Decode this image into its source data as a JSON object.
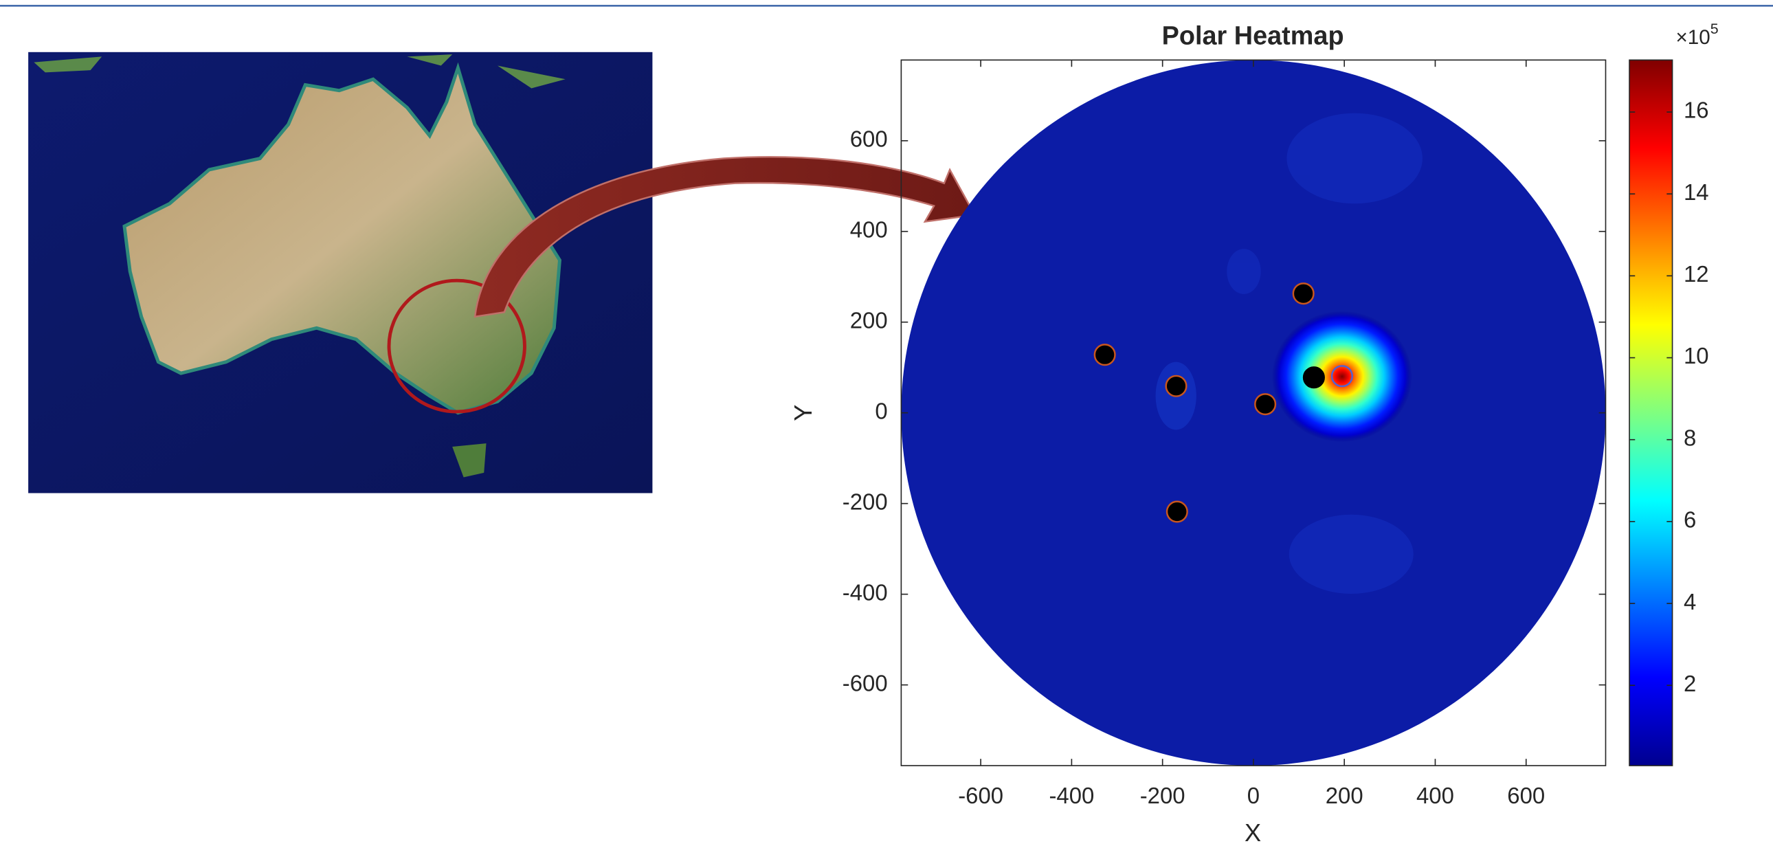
{
  "chart_data": {
    "type": "scatter",
    "title": "Polar Heatmap",
    "xlabel": "X",
    "ylabel": "Y",
    "xlim": [
      -775,
      775
    ],
    "ylim": [
      -778,
      778
    ],
    "xticks": [
      -600,
      -400,
      -200,
      0,
      200,
      400,
      600
    ],
    "yticks": [
      -600,
      -400,
      -200,
      0,
      200,
      400,
      600
    ],
    "field_color": "#0c1ca6",
    "hotspot": {
      "x": 195,
      "y": 80,
      "value": 17.2
    },
    "series": [
      {
        "color": "#000000",
        "edge": "#c8561e",
        "x": [
          -327,
          -170,
          26,
          110,
          -168
        ],
        "values": [
          128,
          59,
          19,
          263,
          -218
        ]
      },
      {
        "color": "#000000",
        "edge": "#000000",
        "x": [
          133
        ],
        "values": [
          78
        ]
      },
      {
        "color": "none",
        "edge": "#4f63d6",
        "x": [
          195
        ],
        "values": [
          81
        ]
      }
    ],
    "colormap": "jet",
    "clim": [
      0.04,
      17.27
    ],
    "cticks": [
      2,
      4,
      6,
      8,
      10,
      12,
      14,
      16
    ],
    "colorbar_base": "×10",
    "colorbar_exponent": "5"
  }
}
